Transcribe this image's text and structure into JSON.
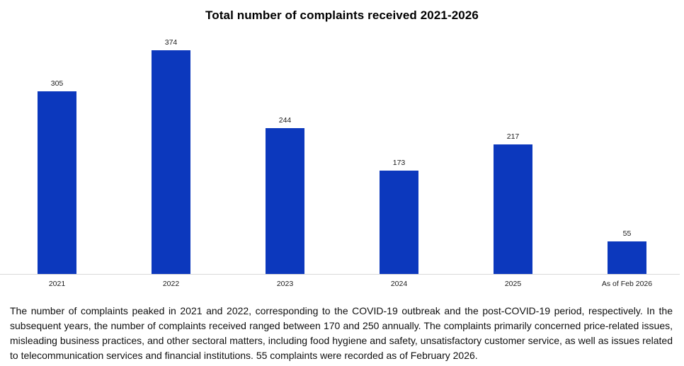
{
  "chart_data": {
    "type": "bar",
    "title": "Total number of complaints received 2021-2026",
    "categories": [
      "2021",
      "2022",
      "2023",
      "2024",
      "2025",
      "As of Feb 2026"
    ],
    "values": [
      305,
      374,
      244,
      173,
      217,
      55
    ],
    "xlabel": "",
    "ylabel": "",
    "ylim": [
      0,
      374
    ],
    "grid": false,
    "legend": false,
    "data_labels": true,
    "bar_color": "#0c38bd",
    "axis_line_color": "#d9d9d9",
    "label_color": "#1a1a1a"
  },
  "description": "The number of complaints peaked in 2021 and 2022, corresponding to the COVID-19 outbreak and the post-COVID-19 period, respectively. In the subsequent years, the number of complaints received ranged between 170 and 250 annually. The complaints primarily concerned price-related issues, misleading business practices, and other sectoral matters, including food hygiene and safety, unsatisfactory customer service, as well as issues related to telecommunication services and financial institutions. 55 complaints were recorded as of February 2026."
}
